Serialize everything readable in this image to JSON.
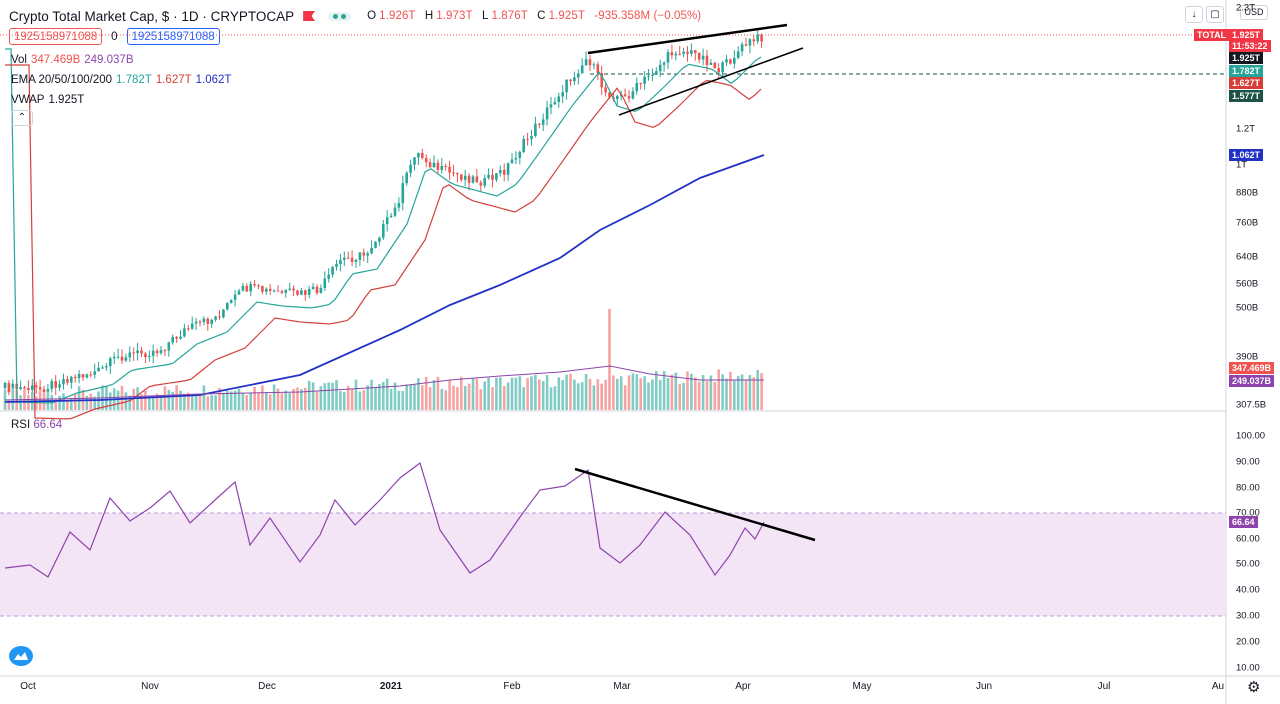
{
  "header": {
    "symbol": "Crypto Total Market Cap, $ · 1D · CRYPTOCAP",
    "ohlc": {
      "open_k": "O",
      "open": "1.926T",
      "high_k": "H",
      "high": "1.973T",
      "low_k": "L",
      "low": "1.876T",
      "close_k": "C",
      "close": "1.925T",
      "change": "-935.358M (−0.05%)"
    },
    "sell_price": "1925158971088",
    "spread": "0",
    "buy_price": "1925158971088",
    "currency": "USD"
  },
  "indicators": {
    "vol": {
      "label": "Vol",
      "v1": "347.469B",
      "v2": "249.037B"
    },
    "ema": {
      "label": "EMA 20/50/100/200",
      "v1": "1.782T",
      "v2": "1.627T",
      "v3": "1.062T"
    },
    "vwap": {
      "label": "VWAP",
      "value": "1.925T"
    },
    "rsi": {
      "label": "RSI",
      "value": "66.64"
    }
  },
  "price_axis": {
    "labels": [
      "2.3T",
      "1.2T",
      "1T",
      "880B",
      "760B",
      "640B",
      "560B",
      "500B",
      "390B",
      "307.5B"
    ],
    "tags": [
      {
        "text": "TOTAL",
        "color": "#f23645"
      },
      {
        "text": "1.925T",
        "color": "#f23645"
      },
      {
        "text": "11:53:22",
        "color": "#f23645"
      },
      {
        "text": "1.925T",
        "color": "#131722"
      },
      {
        "text": "1.782T",
        "color": "#26a69a"
      },
      {
        "text": "1.627T",
        "color": "#d43f3a"
      },
      {
        "text": "1.577T",
        "color": "#1e5245"
      },
      {
        "text": "1.062T",
        "color": "#2132c4"
      },
      {
        "text": "347.469B",
        "color": "#ef5350"
      },
      {
        "text": "249.037B",
        "color": "#8e44ad"
      }
    ]
  },
  "rsi_axis": {
    "labels": [
      "100.00",
      "90.00",
      "80.00",
      "70.00",
      "60.00",
      "50.00",
      "40.00",
      "30.00",
      "20.00",
      "10.00"
    ],
    "tag": "66.64"
  },
  "time_axis": [
    "Oct",
    "Nov",
    "Dec",
    "2021",
    "Feb",
    "Mar",
    "Apr",
    "May",
    "Jun",
    "Jul",
    "Au"
  ],
  "colors": {
    "up": "#26a69a",
    "down": "#ef5350",
    "ema20": "#26a69a",
    "ema50": "#d43f3a",
    "ema200": "#2132c4",
    "volma": "#8e44ad",
    "rsi": "#8e44ad",
    "rsiband": "#f3e5f5"
  },
  "icons": {
    "logo": "tradingview-logo-icon",
    "settings": "gear-icon",
    "download": "arrow-down-icon",
    "fullscreen": "fullscreen-icon"
  }
}
